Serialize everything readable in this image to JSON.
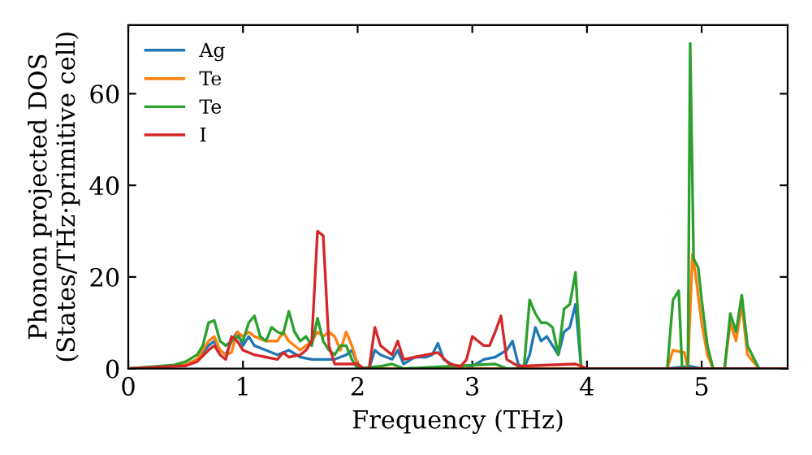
{
  "chart_data": {
    "type": "line",
    "xlabel": "Frequency (THz)",
    "ylabel": "Phonon projected DOS\n(States/THz·primitive cell)",
    "xlim": [
      0,
      5.75
    ],
    "ylim": [
      0,
      75
    ],
    "xticks": [
      0,
      1,
      2,
      3,
      4,
      5
    ],
    "yticks": [
      0,
      20,
      40,
      60
    ],
    "grid": false,
    "legend": "top left",
    "marker": "none",
    "line_style": "solid",
    "series": [
      {
        "name": "Ag",
        "color": "#1f77b4",
        "x": [
          0.5,
          0.6,
          0.7,
          0.75,
          0.8,
          0.85,
          0.9,
          0.95,
          1.0,
          1.05,
          1.1,
          1.2,
          1.3,
          1.4,
          1.5,
          1.6,
          1.7,
          1.8,
          1.9,
          1.95,
          2.0,
          2.05,
          2.1,
          2.15,
          2.2,
          2.3,
          2.35,
          2.4,
          2.5,
          2.6,
          2.65,
          2.7,
          2.75,
          2.85,
          2.95,
          3.0,
          3.1,
          3.2,
          3.3,
          3.35,
          3.4,
          3.45,
          3.5,
          3.55,
          3.6,
          3.65,
          3.7,
          3.75,
          3.8,
          3.85,
          3.9,
          3.95,
          4.7,
          4.9,
          5.0,
          5.75
        ],
        "values": [
          0.8,
          2,
          5,
          6,
          4,
          3,
          6,
          8,
          5,
          7,
          5,
          4,
          3,
          4,
          2.5,
          2,
          2,
          2,
          3,
          4,
          1,
          0,
          0,
          4,
          3,
          2,
          4,
          1,
          2.5,
          2.5,
          3,
          5.5,
          2,
          0.5,
          0,
          0.5,
          2,
          2.5,
          4,
          6,
          1,
          0,
          3,
          9,
          6,
          7,
          5,
          3,
          8,
          9,
          14,
          0,
          0,
          0.5,
          0,
          0
        ]
      },
      {
        "name": "Te",
        "color": "#ff7f0e",
        "x": [
          0,
          0.5,
          0.6,
          0.7,
          0.75,
          0.8,
          0.85,
          0.9,
          0.95,
          1.0,
          1.05,
          1.1,
          1.2,
          1.3,
          1.35,
          1.4,
          1.5,
          1.6,
          1.65,
          1.7,
          1.75,
          1.8,
          1.85,
          1.9,
          1.95,
          2.0,
          2.05,
          4.7,
          4.75,
          4.85,
          4.88,
          4.92,
          4.95,
          5.0,
          5.05,
          5.1,
          5.2,
          5.25,
          5.3,
          5.35,
          5.4,
          5.5,
          5.75
        ],
        "values": [
          0,
          0.8,
          2,
          6,
          7,
          4,
          3,
          3.5,
          8,
          7,
          8,
          7,
          6,
          6,
          8,
          6,
          4,
          6,
          8,
          7,
          8,
          7,
          4,
          8,
          5,
          1,
          0,
          0,
          4,
          3.5,
          0,
          25,
          20,
          10,
          3,
          0,
          0,
          10,
          6,
          14,
          3,
          0,
          0
        ]
      },
      {
        "name": "Te",
        "color": "#2ca02c",
        "x": [
          0,
          0.4,
          0.5,
          0.6,
          0.65,
          0.7,
          0.75,
          0.8,
          0.85,
          0.9,
          0.95,
          1.0,
          1.05,
          1.1,
          1.15,
          1.2,
          1.25,
          1.3,
          1.35,
          1.4,
          1.45,
          1.5,
          1.55,
          1.6,
          1.65,
          1.7,
          1.75,
          1.8,
          1.85,
          1.9,
          1.95,
          2.0,
          2.2,
          2.3,
          2.4,
          3.2,
          3.3,
          3.45,
          3.5,
          3.55,
          3.6,
          3.65,
          3.7,
          3.75,
          3.8,
          3.85,
          3.9,
          3.95,
          4.7,
          4.75,
          4.8,
          4.83,
          4.88,
          4.9,
          4.93,
          4.97,
          5.0,
          5.05,
          5.1,
          5.2,
          5.25,
          5.3,
          5.35,
          5.4,
          5.5,
          5.55
        ],
        "values": [
          0,
          0.8,
          1.5,
          3,
          5,
          10,
          10.5,
          6,
          5,
          6,
          7,
          6,
          10,
          11.5,
          7,
          6,
          9,
          8,
          7.5,
          12.5,
          8,
          6,
          7,
          5,
          11,
          6,
          4,
          3,
          5,
          5,
          2,
          0,
          0.5,
          1,
          0,
          1,
          0,
          0,
          15,
          12,
          10,
          10,
          9,
          3,
          13,
          14,
          21,
          0,
          0,
          15,
          17,
          0,
          0,
          71,
          24,
          22,
          15,
          5,
          0,
          0,
          12,
          8,
          16,
          5,
          0,
          0
        ]
      },
      {
        "name": "I",
        "color": "#d62728",
        "x": [
          0,
          0.5,
          0.6,
          0.7,
          0.75,
          0.8,
          0.85,
          0.9,
          0.95,
          1.0,
          1.1,
          1.2,
          1.3,
          1.35,
          1.4,
          1.5,
          1.55,
          1.6,
          1.65,
          1.7,
          1.75,
          1.8,
          2.0,
          2.05,
          2.1,
          2.15,
          2.2,
          2.3,
          2.35,
          2.4,
          2.5,
          2.7,
          2.8,
          2.9,
          2.95,
          3.0,
          3.05,
          3.1,
          3.15,
          3.2,
          3.25,
          3.3,
          3.4,
          3.9,
          4.0,
          5.75
        ],
        "values": [
          0,
          0.6,
          1.5,
          4,
          5,
          3,
          2,
          7,
          6,
          4,
          3,
          2.5,
          2,
          3.5,
          2.5,
          3,
          4,
          6,
          30,
          29,
          5,
          1,
          1,
          0,
          0,
          9,
          5,
          3,
          6,
          2,
          2.5,
          3.5,
          1,
          0.5,
          2,
          7,
          6,
          5,
          5,
          8,
          11.5,
          2,
          0.5,
          1,
          0,
          0
        ]
      }
    ]
  }
}
